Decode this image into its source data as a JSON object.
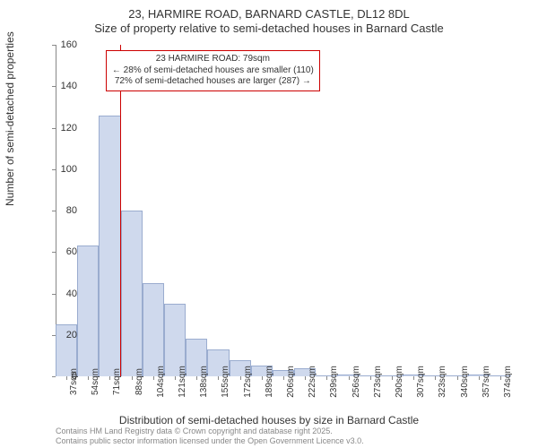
{
  "title": {
    "line1": "23, HARMIRE ROAD, BARNARD CASTLE, DL12 8DL",
    "line2": "Size of property relative to semi-detached houses in Barnard Castle"
  },
  "chart": {
    "type": "histogram",
    "ylabel": "Number of semi-detached properties",
    "xlabel": "Distribution of semi-detached houses by size in Barnard Castle",
    "ylim": [
      0,
      160
    ],
    "ytick_step": 20,
    "yticks": [
      0,
      20,
      40,
      60,
      80,
      100,
      120,
      140,
      160
    ],
    "xtick_labels": [
      "37sqm",
      "54sqm",
      "71sqm",
      "88sqm",
      "104sqm",
      "121sqm",
      "138sqm",
      "155sqm",
      "172sqm",
      "189sqm",
      "206sqm",
      "222sqm",
      "239sqm",
      "256sqm",
      "273sqm",
      "290sqm",
      "307sqm",
      "323sqm",
      "340sqm",
      "357sqm",
      "374sqm"
    ],
    "bar_values": [
      25,
      63,
      126,
      80,
      45,
      35,
      18,
      13,
      8,
      5,
      3,
      4,
      0,
      1,
      0,
      0,
      1,
      0,
      0,
      1,
      0
    ],
    "bar_fill": "#cfd9ed",
    "bar_stroke": "#9aaccf",
    "axis_color": "#888888",
    "background_color": "#ffffff",
    "bar_width_ratio": 1.0,
    "marker": {
      "value_sqm": 79,
      "line_color": "#cc0000",
      "annotation_border": "#cc0000",
      "annotation_bg": "#ffffff",
      "annotation_lines": [
        "23 HARMIRE ROAD: 79sqm",
        "← 28% of semi-detached houses are smaller (110)",
        "72% of semi-detached houses are larger (287) →"
      ]
    }
  },
  "footer": {
    "line1": "Contains HM Land Registry data © Crown copyright and database right 2025.",
    "line2": "Contains public sector information licensed under the Open Government Licence v3.0."
  }
}
